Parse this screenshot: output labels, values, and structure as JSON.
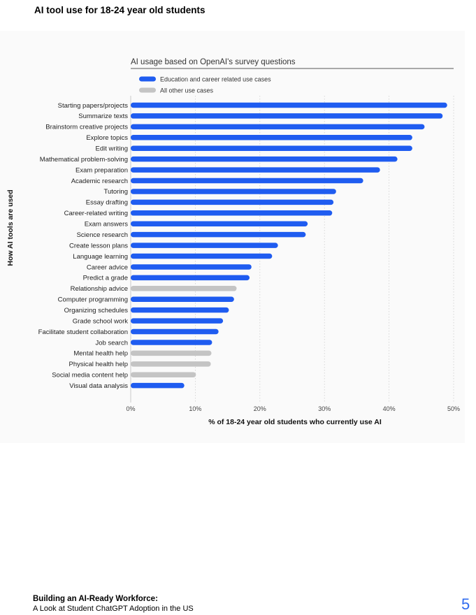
{
  "page": {
    "title": "AI tool use for 18-24 year old students",
    "footer_title": "Building an AI-Ready Workforce:",
    "footer_subtitle": "A Look at Student ChatGPT Adoption in the US",
    "page_number": "5"
  },
  "chart_data": {
    "type": "bar",
    "orientation": "horizontal",
    "title": "AI usage based on OpenAI's survey questions",
    "xlabel": "% of 18-24 year old students who currently use AI",
    "ylabel": "How AI tools are used",
    "xlim": [
      0,
      50
    ],
    "xticks": [
      "0%",
      "10%",
      "20%",
      "30%",
      "40%",
      "50%"
    ],
    "grid": "vertical dotted",
    "legend_placement": "top-left",
    "legend": [
      {
        "label": "Education and career related use cases",
        "color": "#1f5cf0"
      },
      {
        "label": "All other use cases",
        "color": "#c4c4c4"
      }
    ],
    "categories": [
      "Starting papers/projects",
      "Summarize texts",
      "Brainstorm creative projects",
      "Explore topics",
      "Edit writing",
      "Mathematical problem-solving",
      "Exam preparation",
      "Academic research",
      "Tutoring",
      "Essay drafting",
      "Career-related writing",
      "Exam answers",
      "Science research",
      "Create lesson plans",
      "Language learning",
      "Career advice",
      "Predict a grade",
      "Relationship advice",
      "Computer programming",
      "Organizing schedules",
      "Grade school work",
      "Facilitate student collaboration",
      "Job search",
      "Mental health help",
      "Physical health help",
      "Social media content help",
      "Visual data analysis"
    ],
    "values": [
      49,
      48.3,
      45.5,
      43.6,
      43.6,
      41.3,
      38.6,
      36,
      31.8,
      31.4,
      31.2,
      27.4,
      27.1,
      22.8,
      21.9,
      18.7,
      18.4,
      16.4,
      16,
      15.2,
      14.3,
      13.6,
      12.6,
      12.5,
      12.4,
      10.1,
      8.3
    ],
    "groups": [
      "edu",
      "edu",
      "edu",
      "edu",
      "edu",
      "edu",
      "edu",
      "edu",
      "edu",
      "edu",
      "edu",
      "edu",
      "edu",
      "edu",
      "edu",
      "edu",
      "edu",
      "other",
      "edu",
      "edu",
      "edu",
      "edu",
      "edu",
      "other",
      "other",
      "other",
      "edu"
    ],
    "colors": {
      "edu": "#1f5cf0",
      "other": "#c4c4c4"
    }
  }
}
